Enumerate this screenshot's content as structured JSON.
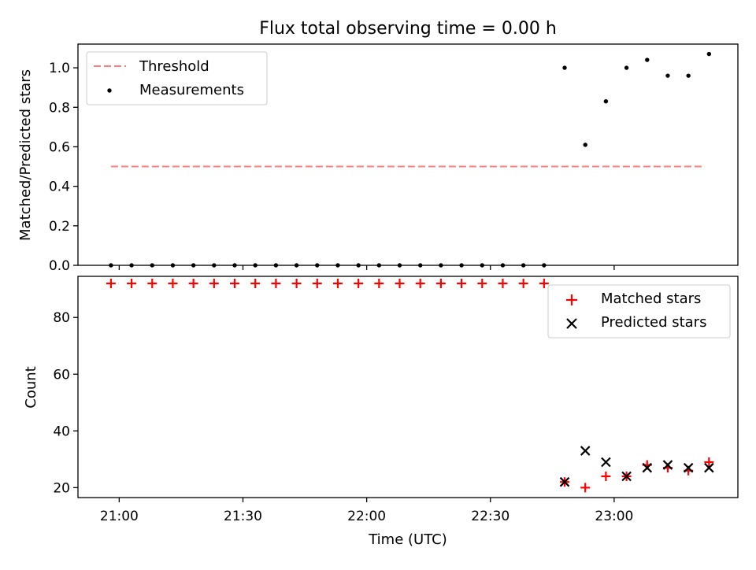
{
  "chart_data": [
    {
      "type": "scatter",
      "title": "Flux total observing time = 0.00 h",
      "ylabel": "Matched/Predicted stars",
      "xlabel": "",
      "ylim": [
        0,
        1.12
      ],
      "yticks": [
        "0.0",
        "0.2",
        "0.4",
        "0.6",
        "0.8",
        "1.0"
      ],
      "ytick_values": [
        0,
        0.2,
        0.4,
        0.6,
        0.8,
        1.0
      ],
      "legend_placement": "top-left",
      "threshold": {
        "name": "Threshold",
        "value": 0.5,
        "x_start": "20:58",
        "x_end": "23:22",
        "color": "#ff7f7f"
      },
      "series": [
        {
          "name": "Measurements",
          "color": "#000000",
          "x": [
            "20:58",
            "21:03",
            "21:08",
            "21:13",
            "21:18",
            "21:23",
            "21:28",
            "21:33",
            "21:38",
            "21:43",
            "21:48",
            "21:53",
            "21:58",
            "22:03",
            "22:08",
            "22:13",
            "22:18",
            "22:23",
            "22:28",
            "22:33",
            "22:38",
            "22:43",
            "22:48",
            "22:53",
            "22:58",
            "23:03",
            "23:08",
            "23:13",
            "23:18",
            "23:23"
          ],
          "y": [
            0,
            0,
            0,
            0,
            0,
            0,
            0,
            0,
            0,
            0,
            0,
            0,
            0,
            0,
            0,
            0,
            0,
            0,
            0,
            0,
            0,
            0,
            1.0,
            0.61,
            0.83,
            1.0,
            1.04,
            0.96,
            0.96,
            1.07
          ]
        }
      ]
    },
    {
      "type": "scatter",
      "title": "",
      "ylabel": "Count",
      "xlabel": "Time (UTC)",
      "ylim": [
        16.5,
        94.5
      ],
      "yticks": [
        "20",
        "40",
        "60",
        "80"
      ],
      "ytick_values": [
        20,
        40,
        60,
        80
      ],
      "xticks": [
        "21:00",
        "21:30",
        "22:00",
        "22:30",
        "23:00"
      ],
      "legend_placement": "top-right",
      "series": [
        {
          "name": "Matched stars",
          "marker": "plus",
          "color": "#ff0000",
          "x": [
            "20:58",
            "21:03",
            "21:08",
            "21:13",
            "21:18",
            "21:23",
            "21:28",
            "21:33",
            "21:38",
            "21:43",
            "21:48",
            "21:53",
            "21:58",
            "22:03",
            "22:08",
            "22:13",
            "22:18",
            "22:23",
            "22:28",
            "22:33",
            "22:38",
            "22:43",
            "22:48",
            "22:53",
            "22:58",
            "23:03",
            "23:08",
            "23:13",
            "23:18",
            "23:23"
          ],
          "y": [
            92,
            92,
            92,
            92,
            92,
            92,
            92,
            92,
            92,
            92,
            92,
            92,
            92,
            92,
            92,
            92,
            92,
            92,
            92,
            92,
            92,
            92,
            22,
            20,
            24,
            24,
            28,
            27,
            26,
            29
          ]
        },
        {
          "name": "Predicted stars",
          "marker": "x",
          "color": "#000000",
          "x": [
            "22:48",
            "22:53",
            "22:58",
            "23:03",
            "23:08",
            "23:13",
            "23:18",
            "23:23"
          ],
          "y": [
            22,
            33,
            29,
            24,
            27,
            28,
            27,
            27
          ]
        }
      ]
    }
  ],
  "x_domain": {
    "start": "20:50",
    "end": "23:30"
  }
}
